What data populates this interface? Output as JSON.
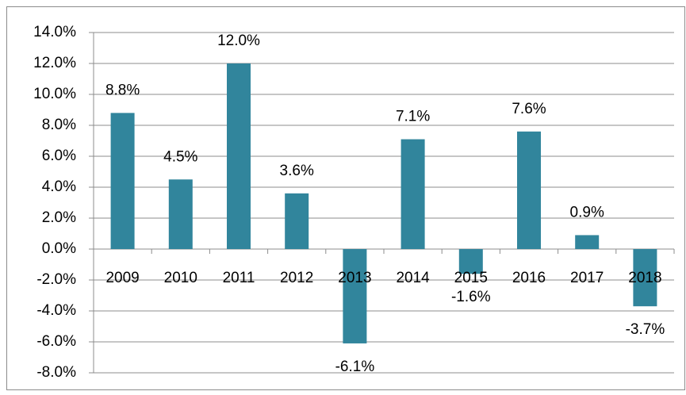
{
  "chart_data": {
    "type": "bar",
    "categories": [
      "2009",
      "2010",
      "2011",
      "2012",
      "2013",
      "2014",
      "2015",
      "2016",
      "2017",
      "2018"
    ],
    "values": [
      8.8,
      4.5,
      12.0,
      3.6,
      -6.1,
      7.1,
      -1.6,
      7.6,
      0.9,
      -3.7
    ],
    "value_labels": [
      "8.8%",
      "4.5%",
      "12.0%",
      "3.6%",
      "-6.1%",
      "7.1%",
      "-1.6%",
      "7.6%",
      "0.9%",
      "-3.7%"
    ],
    "color": "#31859c",
    "ylim": [
      -8,
      14
    ],
    "yticks": [
      {
        "value": -8,
        "label": "-8.0%"
      },
      {
        "value": -6,
        "label": "-6.0%"
      },
      {
        "value": -4,
        "label": "-4.0%"
      },
      {
        "value": -2,
        "label": "-2.0%"
      },
      {
        "value": 0,
        "label": "0.0%"
      },
      {
        "value": 2,
        "label": "2.0%"
      },
      {
        "value": 4,
        "label": "4.0%"
      },
      {
        "value": 6,
        "label": "6.0%"
      },
      {
        "value": 8,
        "label": "8.0%"
      },
      {
        "value": 10,
        "label": "10.0%"
      },
      {
        "value": 12,
        "label": "12.0%"
      },
      {
        "value": 14,
        "label": "14.0%"
      }
    ],
    "grid": true
  }
}
